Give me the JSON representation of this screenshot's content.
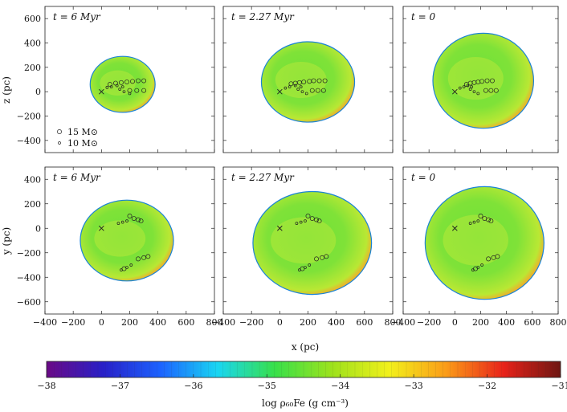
{
  "chart_data": [
    {
      "type": "heatmap",
      "title": "t = 6 Myr",
      "plane": "x-z",
      "xlim": [
        -400,
        800
      ],
      "ylim": [
        -500,
        700
      ],
      "blob": {
        "center": [
          150,
          60
        ],
        "radius": 230
      },
      "star_markers": {
        "15_Msun": [
          [
            60,
            60
          ],
          [
            100,
            70
          ],
          [
            140,
            75
          ],
          [
            180,
            80
          ],
          [
            220,
            85
          ],
          [
            260,
            90
          ],
          [
            300,
            90
          ],
          [
            200,
            10
          ],
          [
            250,
            10
          ],
          [
            300,
            10
          ]
        ],
        "10_Msun": [
          [
            40,
            35
          ],
          [
            70,
            40
          ],
          [
            110,
            50
          ],
          [
            150,
            40
          ],
          [
            130,
            20
          ],
          [
            160,
            0
          ],
          [
            200,
            -15
          ]
        ]
      },
      "cross": [
        0,
        0
      ]
    },
    {
      "type": "heatmap",
      "title": "t = 2.27 Myr",
      "plane": "x-z",
      "xlim": [
        -400,
        800
      ],
      "ylim": [
        -500,
        700
      ],
      "blob": {
        "center": [
          200,
          80
        ],
        "radius": 330
      },
      "star_markers": {
        "15_Msun": [
          [
            80,
            65
          ],
          [
            110,
            70
          ],
          [
            140,
            75
          ],
          [
            170,
            80
          ],
          [
            210,
            85
          ],
          [
            240,
            90
          ],
          [
            280,
            90
          ],
          [
            320,
            90
          ],
          [
            230,
            10
          ],
          [
            270,
            10
          ],
          [
            310,
            10
          ]
        ],
        "10_Msun": [
          [
            40,
            30
          ],
          [
            70,
            40
          ],
          [
            110,
            50
          ],
          [
            150,
            40
          ],
          [
            130,
            20
          ],
          [
            160,
            0
          ],
          [
            190,
            -15
          ]
        ]
      },
      "cross": [
        0,
        0
      ]
    },
    {
      "type": "heatmap",
      "title": "t = 0",
      "plane": "x-z",
      "xlim": [
        -400,
        800
      ],
      "ylim": [
        -500,
        700
      ],
      "blob": {
        "center": [
          220,
          90
        ],
        "radius": 390
      },
      "star_markers": {
        "15_Msun": [
          [
            90,
            60
          ],
          [
            120,
            70
          ],
          [
            150,
            75
          ],
          [
            180,
            80
          ],
          [
            210,
            85
          ],
          [
            250,
            90
          ],
          [
            290,
            90
          ],
          [
            240,
            10
          ],
          [
            280,
            10
          ],
          [
            320,
            10
          ]
        ],
        "10_Msun": [
          [
            40,
            30
          ],
          [
            70,
            40
          ],
          [
            100,
            50
          ],
          [
            130,
            40
          ],
          [
            120,
            20
          ],
          [
            150,
            0
          ],
          [
            180,
            -15
          ]
        ]
      },
      "cross": [
        0,
        0
      ]
    },
    {
      "type": "heatmap",
      "title": "t = 6 Myr",
      "plane": "x-y",
      "xlim": [
        -400,
        800
      ],
      "ylim": [
        -700,
        500
      ],
      "blob": {
        "center": [
          180,
          -100
        ],
        "radius": 330
      },
      "star_markers": {
        "15_Msun": [
          [
            200,
            100
          ],
          [
            230,
            80
          ],
          [
            260,
            70
          ],
          [
            280,
            60
          ],
          [
            260,
            -250
          ],
          [
            300,
            -240
          ],
          [
            330,
            -230
          ],
          [
            160,
            -330
          ]
        ],
        "10_Msun": [
          [
            120,
            40
          ],
          [
            150,
            50
          ],
          [
            180,
            60
          ],
          [
            140,
            -340
          ],
          [
            180,
            -320
          ],
          [
            210,
            -300
          ]
        ]
      },
      "cross": [
        0,
        0
      ]
    },
    {
      "type": "heatmap",
      "title": "t = 2.27 Myr",
      "plane": "x-y",
      "xlim": [
        -400,
        800
      ],
      "ylim": [
        -700,
        500
      ],
      "blob": {
        "center": [
          230,
          -120
        ],
        "radius": 420
      },
      "star_markers": {
        "15_Msun": [
          [
            200,
            100
          ],
          [
            230,
            80
          ],
          [
            260,
            70
          ],
          [
            280,
            60
          ],
          [
            260,
            -250
          ],
          [
            300,
            -240
          ],
          [
            330,
            -230
          ],
          [
            160,
            -330
          ]
        ],
        "10_Msun": [
          [
            120,
            40
          ],
          [
            150,
            50
          ],
          [
            180,
            60
          ],
          [
            140,
            -340
          ],
          [
            180,
            -320
          ],
          [
            210,
            -300
          ]
        ]
      },
      "cross": [
        0,
        0
      ]
    },
    {
      "type": "heatmap",
      "title": "t = 0",
      "plane": "x-y",
      "xlim": [
        -400,
        800
      ],
      "ylim": [
        -700,
        500
      ],
      "blob": {
        "center": [
          230,
          -120
        ],
        "radius": 460
      },
      "star_markers": {
        "15_Msun": [
          [
            200,
            100
          ],
          [
            230,
            80
          ],
          [
            260,
            70
          ],
          [
            280,
            60
          ],
          [
            260,
            -250
          ],
          [
            300,
            -240
          ],
          [
            330,
            -230
          ],
          [
            160,
            -330
          ]
        ],
        "10_Msun": [
          [
            120,
            40
          ],
          [
            150,
            50
          ],
          [
            180,
            60
          ],
          [
            140,
            -340
          ],
          [
            180,
            -320
          ],
          [
            210,
            -300
          ]
        ]
      },
      "cross": [
        0,
        0
      ]
    }
  ],
  "axes": {
    "x_ticks": [
      -400,
      -200,
      0,
      200,
      400,
      600,
      800
    ],
    "top_y_ticks": [
      -400,
      -200,
      0,
      200,
      400,
      600
    ],
    "bottom_y_ticks": [
      -600,
      -400,
      -200,
      0,
      200,
      400
    ],
    "xlabel": "x (pc)",
    "top_ylabel": "z (pc)",
    "bottom_ylabel": "y (pc)"
  },
  "legend": {
    "big": "15 M⊙",
    "small": "10 M⊙"
  },
  "colorbar": {
    "min": -38,
    "max": -31,
    "ticks": [
      -38,
      -37,
      -36,
      -35,
      -34,
      -33,
      -32,
      -31
    ],
    "label": "log ρ₆₀Fe (g cm⁻³)",
    "colors": [
      "#6a0a86",
      "#2820c8",
      "#1c63ff",
      "#19d6f2",
      "#38e04a",
      "#9ee21c",
      "#f2f01c",
      "#fb9b18",
      "#e8231a",
      "#6e1612"
    ]
  }
}
